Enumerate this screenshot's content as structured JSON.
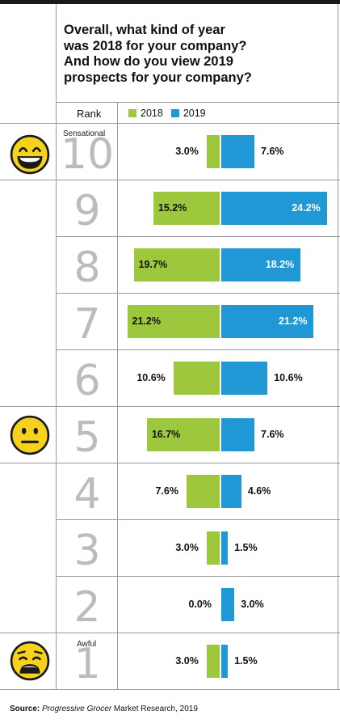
{
  "title": "Overall, what kind of year\nwas 2018 for your company?\nAnd how do you view 2019\nprospects for your company?",
  "rank_header": "Rank",
  "legend": [
    {
      "label": "2018",
      "color": "#9dc73c"
    },
    {
      "label": "2019",
      "color": "#1f98d5"
    }
  ],
  "scale_labels": {
    "top": "Sensational",
    "bottom": "Awful"
  },
  "emojis": [
    {
      "rank": "10",
      "icon": "grinning-face-icon"
    },
    {
      "rank": "5",
      "icon": "neutral-face-icon"
    },
    {
      "rank": "1",
      "icon": "anguished-face-icon"
    }
  ],
  "source": {
    "prefix": "Source:",
    "publication": "Progressive Grocer",
    "suffix": " Market Research, 2019"
  },
  "chart_data": {
    "type": "bar",
    "orientation": "horizontal-diverging",
    "categories": [
      "10",
      "9",
      "8",
      "7",
      "6",
      "5",
      "4",
      "3",
      "2",
      "1"
    ],
    "series": [
      {
        "name": "2018",
        "color": "#9dc73c",
        "values": [
          3.0,
          15.2,
          19.7,
          21.2,
          10.6,
          16.7,
          7.6,
          3.0,
          0.0,
          3.0
        ],
        "labels": [
          "3.0%",
          "15.2%",
          "19.7%",
          "21.2%",
          "10.6%",
          "16.7%",
          "7.6%",
          "3.0%",
          "0.0%",
          "3.0%"
        ]
      },
      {
        "name": "2019",
        "color": "#1f98d5",
        "values": [
          7.6,
          24.2,
          18.2,
          21.2,
          10.6,
          7.6,
          4.6,
          1.5,
          3.0,
          1.5
        ],
        "labels": [
          "7.6%",
          "24.2%",
          "18.2%",
          "21.2%",
          "10.6%",
          "7.6%",
          "4.6%",
          "1.5%",
          "3.0%",
          "1.5%"
        ]
      }
    ],
    "xlabel": "Rank",
    "unit": "%"
  }
}
